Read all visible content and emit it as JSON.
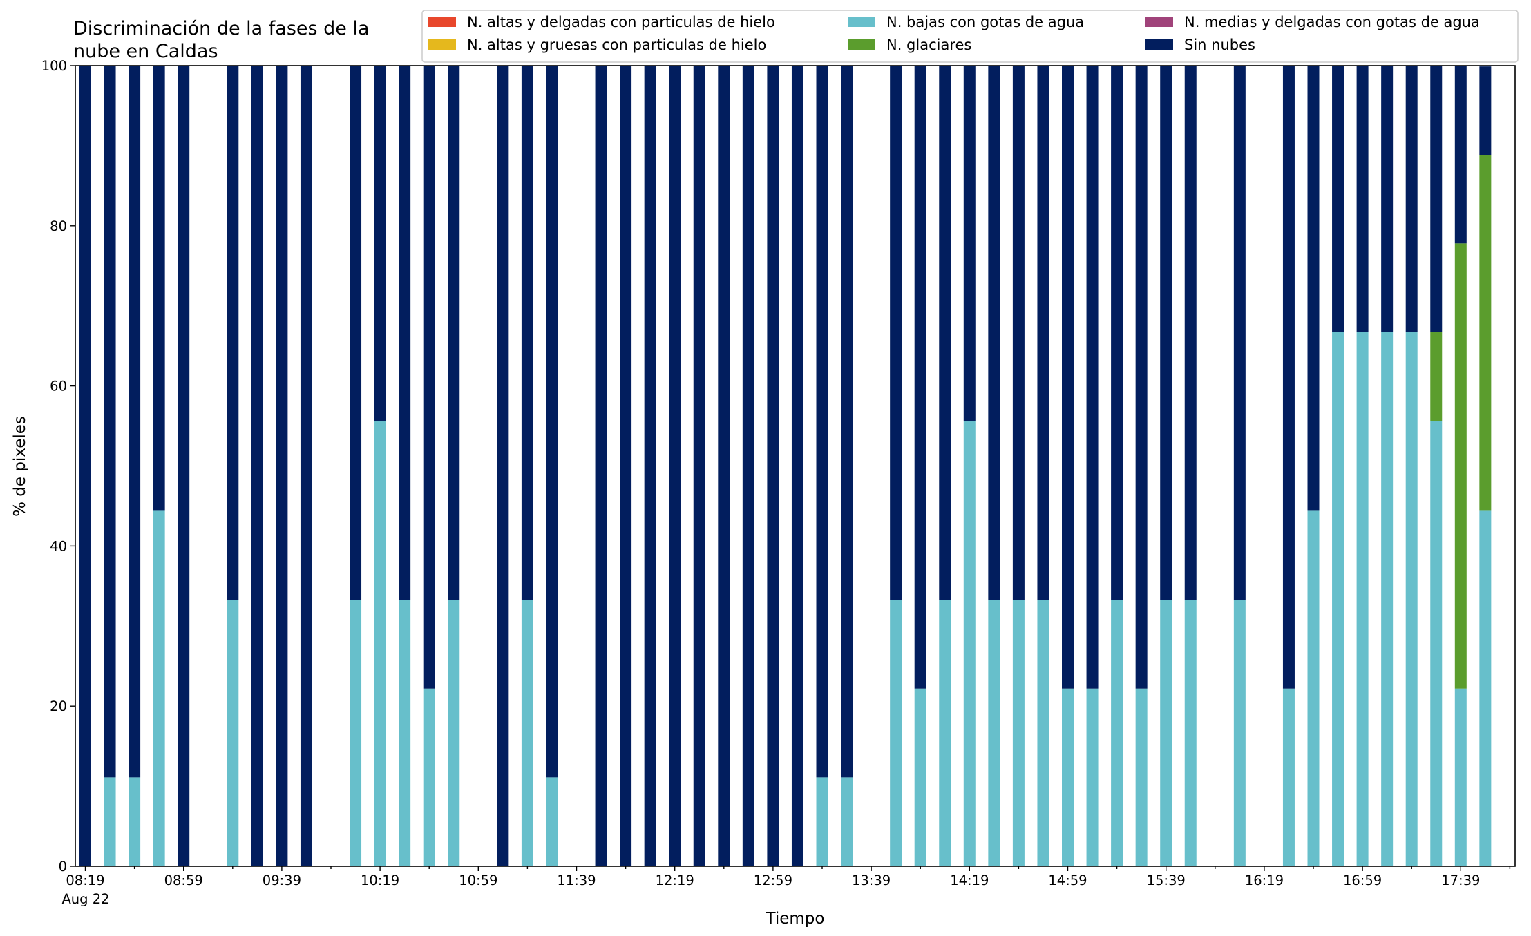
{
  "chart_data": {
    "type": "bar",
    "stacked": true,
    "title": "Discriminación de la fases de la nube en Caldas",
    "title_lines": [
      "Discriminación de la fases de la",
      "nube en Caldas"
    ],
    "xlabel": "Tiempo",
    "ylabel": "% de pixeles",
    "ylim": [
      0,
      100
    ],
    "yticks": [
      0,
      20,
      40,
      60,
      80,
      100
    ],
    "xtick_labels": [
      "08:19",
      "08:59",
      "09:39",
      "10:19",
      "10:59",
      "11:39",
      "12:19",
      "12:59",
      "13:39",
      "14:19",
      "14:59",
      "15:39",
      "16:19",
      "16:59",
      "17:39"
    ],
    "date_label": "Aug 22",
    "time_start": "08:19",
    "slot_minutes": 10,
    "grid": false,
    "legend_position": "top-right",
    "series": [
      {
        "name": "N. altas y delgadas con particulas de hielo",
        "color": "#e8472c"
      },
      {
        "name": "N. altas y gruesas con particulas de hielo",
        "color": "#e5b81d"
      },
      {
        "name": "N. bajas con gotas de agua",
        "color": "#67bfcb"
      },
      {
        "name": "N. glaciares",
        "color": "#5b9d2d"
      },
      {
        "name": "N. medias y delgadas con gotas de agua",
        "color": "#a0437a"
      },
      {
        "name": "Sin nubes",
        "color": "#021e5e"
      }
    ],
    "bars": [
      {
        "slot": 0,
        "bajas": 0,
        "glaciares": 0,
        "sin_nubes": 100
      },
      {
        "slot": 1,
        "bajas": 11.1,
        "glaciares": 0,
        "sin_nubes": 88.9
      },
      {
        "slot": 2,
        "bajas": 11.1,
        "glaciares": 0,
        "sin_nubes": 88.9
      },
      {
        "slot": 3,
        "bajas": 44.4,
        "glaciares": 0,
        "sin_nubes": 55.6
      },
      {
        "slot": 4,
        "bajas": 0,
        "glaciares": 0,
        "sin_nubes": 100
      },
      {
        "slot": 6,
        "bajas": 33.3,
        "glaciares": 0,
        "sin_nubes": 66.7
      },
      {
        "slot": 7,
        "bajas": 0,
        "glaciares": 0,
        "sin_nubes": 100
      },
      {
        "slot": 8,
        "bajas": 0,
        "glaciares": 0,
        "sin_nubes": 100
      },
      {
        "slot": 9,
        "bajas": 0,
        "glaciares": 0,
        "sin_nubes": 100
      },
      {
        "slot": 11,
        "bajas": 33.3,
        "glaciares": 0,
        "sin_nubes": 66.7
      },
      {
        "slot": 12,
        "bajas": 55.6,
        "glaciares": 0,
        "sin_nubes": 44.4
      },
      {
        "slot": 13,
        "bajas": 33.3,
        "glaciares": 0,
        "sin_nubes": 66.7
      },
      {
        "slot": 14,
        "bajas": 22.2,
        "glaciares": 0,
        "sin_nubes": 77.8
      },
      {
        "slot": 15,
        "bajas": 33.3,
        "glaciares": 0,
        "sin_nubes": 66.7
      },
      {
        "slot": 17,
        "bajas": 0,
        "glaciares": 0,
        "sin_nubes": 100
      },
      {
        "slot": 18,
        "bajas": 33.3,
        "glaciares": 0,
        "sin_nubes": 66.7
      },
      {
        "slot": 19,
        "bajas": 11.1,
        "glaciares": 0,
        "sin_nubes": 88.9
      },
      {
        "slot": 21,
        "bajas": 0,
        "glaciares": 0,
        "sin_nubes": 100
      },
      {
        "slot": 22,
        "bajas": 0,
        "glaciares": 0,
        "sin_nubes": 100
      },
      {
        "slot": 23,
        "bajas": 0,
        "glaciares": 0,
        "sin_nubes": 100
      },
      {
        "slot": 24,
        "bajas": 0,
        "glaciares": 0,
        "sin_nubes": 100
      },
      {
        "slot": 25,
        "bajas": 0,
        "glaciares": 0,
        "sin_nubes": 100
      },
      {
        "slot": 26,
        "bajas": 0,
        "glaciares": 0,
        "sin_nubes": 100
      },
      {
        "slot": 27,
        "bajas": 0,
        "glaciares": 0,
        "sin_nubes": 100
      },
      {
        "slot": 28,
        "bajas": 0,
        "glaciares": 0,
        "sin_nubes": 100
      },
      {
        "slot": 29,
        "bajas": 0,
        "glaciares": 0,
        "sin_nubes": 100
      },
      {
        "slot": 30,
        "bajas": 11.1,
        "glaciares": 0,
        "sin_nubes": 88.9
      },
      {
        "slot": 31,
        "bajas": 11.1,
        "glaciares": 0,
        "sin_nubes": 88.9
      },
      {
        "slot": 33,
        "bajas": 33.3,
        "glaciares": 0,
        "sin_nubes": 66.7
      },
      {
        "slot": 34,
        "bajas": 22.2,
        "glaciares": 0,
        "sin_nubes": 77.8
      },
      {
        "slot": 35,
        "bajas": 33.3,
        "glaciares": 0,
        "sin_nubes": 66.7
      },
      {
        "slot": 36,
        "bajas": 55.6,
        "glaciares": 0,
        "sin_nubes": 44.4
      },
      {
        "slot": 37,
        "bajas": 33.3,
        "glaciares": 0,
        "sin_nubes": 66.7
      },
      {
        "slot": 38,
        "bajas": 33.3,
        "glaciares": 0,
        "sin_nubes": 66.7
      },
      {
        "slot": 39,
        "bajas": 33.3,
        "glaciares": 0,
        "sin_nubes": 66.7
      },
      {
        "slot": 40,
        "bajas": 22.2,
        "glaciares": 0,
        "sin_nubes": 77.8
      },
      {
        "slot": 41,
        "bajas": 22.2,
        "glaciares": 0,
        "sin_nubes": 77.8
      },
      {
        "slot": 42,
        "bajas": 33.3,
        "glaciares": 0,
        "sin_nubes": 66.7
      },
      {
        "slot": 43,
        "bajas": 22.2,
        "glaciares": 0,
        "sin_nubes": 77.8
      },
      {
        "slot": 44,
        "bajas": 33.3,
        "glaciares": 0,
        "sin_nubes": 66.7
      },
      {
        "slot": 45,
        "bajas": 33.3,
        "glaciares": 0,
        "sin_nubes": 66.7
      },
      {
        "slot": 47,
        "bajas": 33.3,
        "glaciares": 0,
        "sin_nubes": 66.7
      },
      {
        "slot": 49,
        "bajas": 22.2,
        "glaciares": 0,
        "sin_nubes": 77.8
      },
      {
        "slot": 50,
        "bajas": 44.4,
        "glaciares": 0,
        "sin_nubes": 55.6
      },
      {
        "slot": 51,
        "bajas": 66.7,
        "glaciares": 0,
        "sin_nubes": 33.3
      },
      {
        "slot": 52,
        "bajas": 66.7,
        "glaciares": 0,
        "sin_nubes": 33.3
      },
      {
        "slot": 53,
        "bajas": 66.7,
        "glaciares": 0,
        "sin_nubes": 33.3
      },
      {
        "slot": 54,
        "bajas": 66.7,
        "glaciares": 0,
        "sin_nubes": 33.3
      },
      {
        "slot": 55,
        "bajas": 55.6,
        "glaciares": 11.1,
        "sin_nubes": 33.3
      },
      {
        "slot": 56,
        "bajas": 22.2,
        "glaciares": 55.6,
        "sin_nubes": 22.2
      },
      {
        "slot": 57,
        "bajas": 44.4,
        "glaciares": 44.4,
        "sin_nubes": 11.1
      }
    ]
  }
}
